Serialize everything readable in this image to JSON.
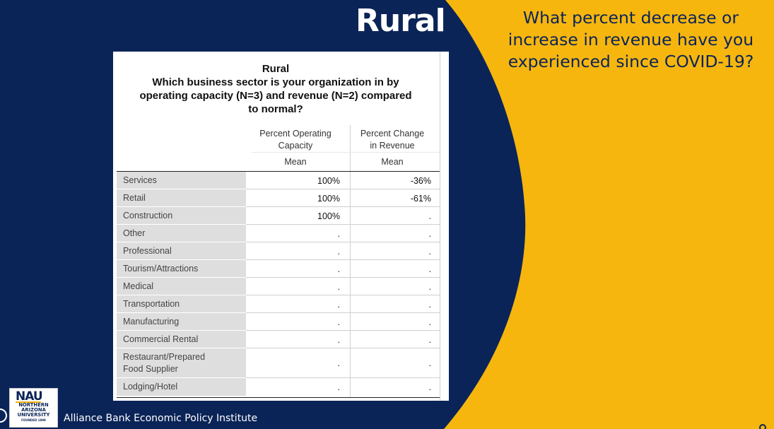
{
  "slide": {
    "title": "Rural",
    "question": "What percent decrease or increase in revenue have you experienced since COVID-19?",
    "footer": "Alliance Bank Economic Policy Institute",
    "colors": {
      "navy": "#0b2458",
      "gold": "#f6b60e",
      "white": "#ffffff"
    }
  },
  "logo": {
    "mark": "NAU",
    "lines": [
      "NORTHERN",
      "ARIZONA",
      "UNIVERSITY",
      "FOUNDED 1899"
    ]
  },
  "table": {
    "title_line1": "Rural",
    "title_line2": "Which business sector is your organization in by",
    "title_line3": "operating capacity (N=3) and revenue (N=2) compared",
    "title_line4": "to normal?",
    "col1_header_line1": "Percent Operating",
    "col1_header_line2": "Capacity",
    "col1_stat": "Mean",
    "col2_header_line1": "Percent Change",
    "col2_header_line2": "in Revenue",
    "col2_stat": "Mean",
    "rows": [
      {
        "sector": "Services",
        "capacity": "100%",
        "revenue": "-36%"
      },
      {
        "sector": "Retail",
        "capacity": "100%",
        "revenue": "-61%"
      },
      {
        "sector": "Construction",
        "capacity": "100%",
        "revenue": "."
      },
      {
        "sector": "Other",
        "capacity": ".",
        "revenue": "."
      },
      {
        "sector": "Professional",
        "capacity": ".",
        "revenue": "."
      },
      {
        "sector": "Tourism/Attractions",
        "capacity": ".",
        "revenue": "."
      },
      {
        "sector": "Medical",
        "capacity": ".",
        "revenue": "."
      },
      {
        "sector": "Transportation",
        "capacity": ".",
        "revenue": "."
      },
      {
        "sector": "Manufacturing",
        "capacity": ".",
        "revenue": "."
      },
      {
        "sector": "Commercial Rental",
        "capacity": ".",
        "revenue": "."
      },
      {
        "sector": "Restaurant/Prepared Food Supplier",
        "capacity": ".",
        "revenue": "."
      },
      {
        "sector": "Lodging/Hotel",
        "capacity": ".",
        "revenue": "."
      }
    ]
  }
}
